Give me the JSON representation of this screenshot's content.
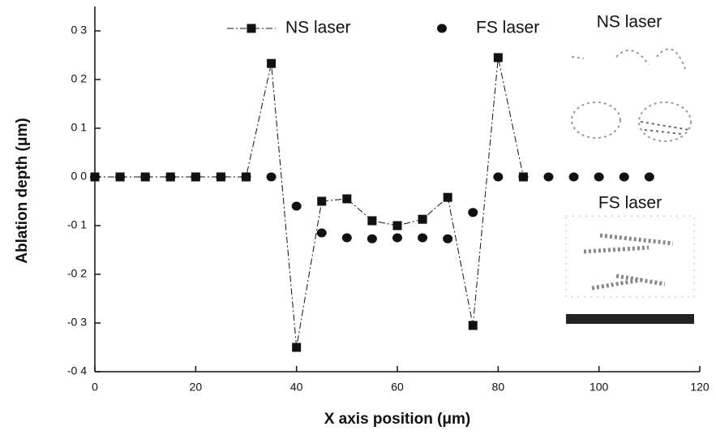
{
  "chart_data": {
    "type": "line",
    "xlabel": "X axis position (μm)",
    "ylabel": "Ablation depth (μm)",
    "xlim": [
      0,
      120
    ],
    "xticks": [
      0,
      20,
      40,
      60,
      80,
      100,
      120
    ],
    "ylim": [
      -0.4,
      0.35
    ],
    "yticks": [
      {
        "value": 0.3,
        "label": "0 3"
      },
      {
        "value": 0.2,
        "label": "0 2"
      },
      {
        "value": 0.1,
        "label": "0 1"
      },
      {
        "value": 0,
        "label": "0 0"
      },
      {
        "value": -0.1,
        "label": "-0 1"
      },
      {
        "value": -0.2,
        "label": "-0 2"
      },
      {
        "value": -0.3,
        "label": "-0 3"
      },
      {
        "value": -0.4,
        "label": "-0 4"
      }
    ],
    "legend": "top",
    "series": [
      {
        "name": "NS laser",
        "color": "#111111",
        "marker": "square",
        "x": [
          0,
          5,
          10,
          15,
          20,
          25,
          30,
          35,
          40,
          45,
          50,
          55,
          60,
          65,
          70,
          75,
          80,
          85
        ],
        "values": [
          0,
          0,
          0,
          0,
          0,
          0,
          0,
          0.233,
          -0.35,
          -0.05,
          -0.045,
          -0.09,
          -0.1,
          -0.087,
          -0.042,
          -0.305,
          0.245,
          0
        ]
      },
      {
        "name": "FS laser",
        "color": "#111111",
        "marker": "circle",
        "x": [
          0,
          5,
          10,
          15,
          20,
          25,
          30,
          35,
          40,
          45,
          50,
          55,
          60,
          65,
          70,
          75,
          80,
          85,
          90,
          95,
          100,
          105,
          110
        ],
        "values": [
          0,
          0,
          0,
          0,
          0,
          0,
          0,
          0,
          -0.06,
          -0.115,
          -0.125,
          -0.127,
          -0.125,
          -0.125,
          -0.127,
          -0.073,
          0,
          0,
          0,
          0,
          0,
          0,
          0
        ]
      }
    ],
    "annotations": [
      "NS laser",
      "FS laser"
    ]
  }
}
